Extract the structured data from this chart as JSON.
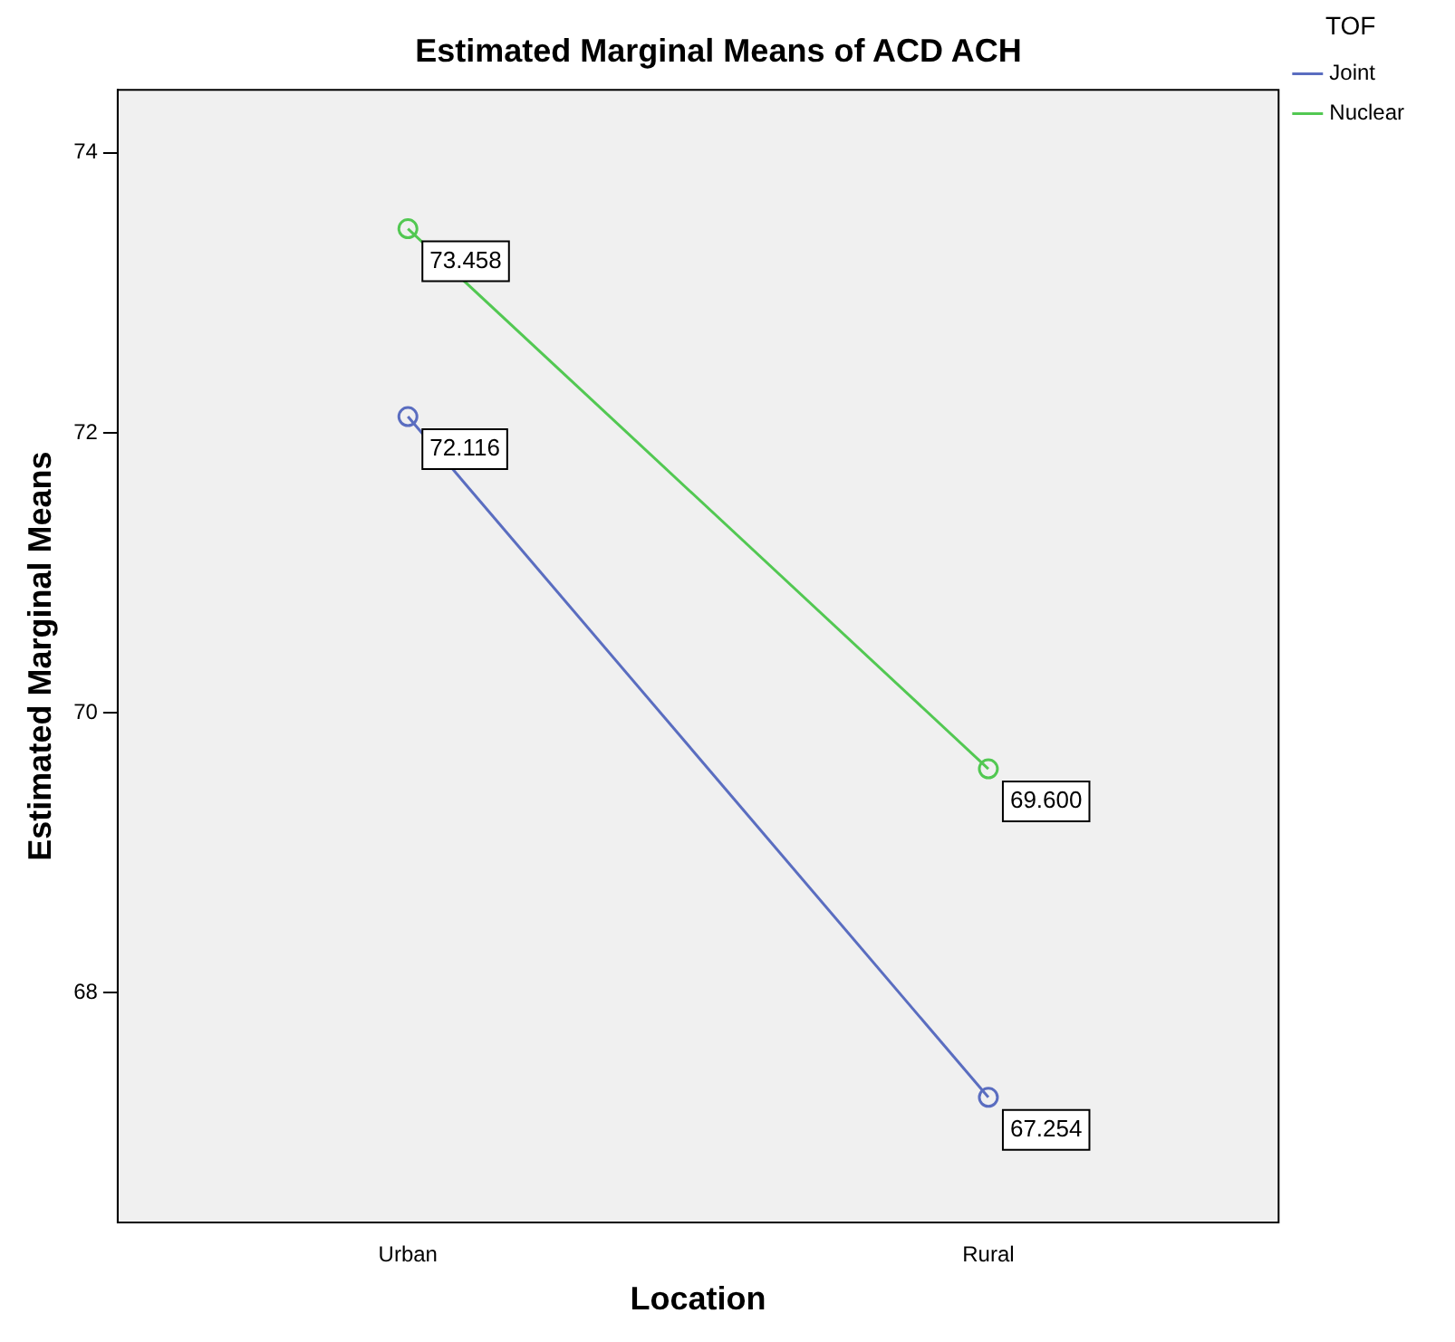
{
  "chart_data": {
    "type": "line",
    "title": "Estimated Marginal Means of ACD ACH",
    "xlabel": "Location",
    "ylabel": "Estimated Marginal Means",
    "legend_title": "TOF",
    "categories": [
      "Urban",
      "Rural"
    ],
    "series": [
      {
        "name": "Joint",
        "color": "#5a6dc0",
        "values": [
          72.116,
          67.254
        ],
        "value_labels": [
          "72.116",
          "67.254"
        ]
      },
      {
        "name": "Nuclear",
        "color": "#52c852",
        "values": [
          73.458,
          69.6
        ],
        "value_labels": [
          "73.458",
          "69.600"
        ]
      }
    ],
    "ylim": [
      66.36,
      74.45
    ],
    "yticks": [
      68,
      70,
      72,
      74
    ],
    "grid": false,
    "legend": "top right",
    "marker": "circle",
    "line_style": "solid"
  }
}
